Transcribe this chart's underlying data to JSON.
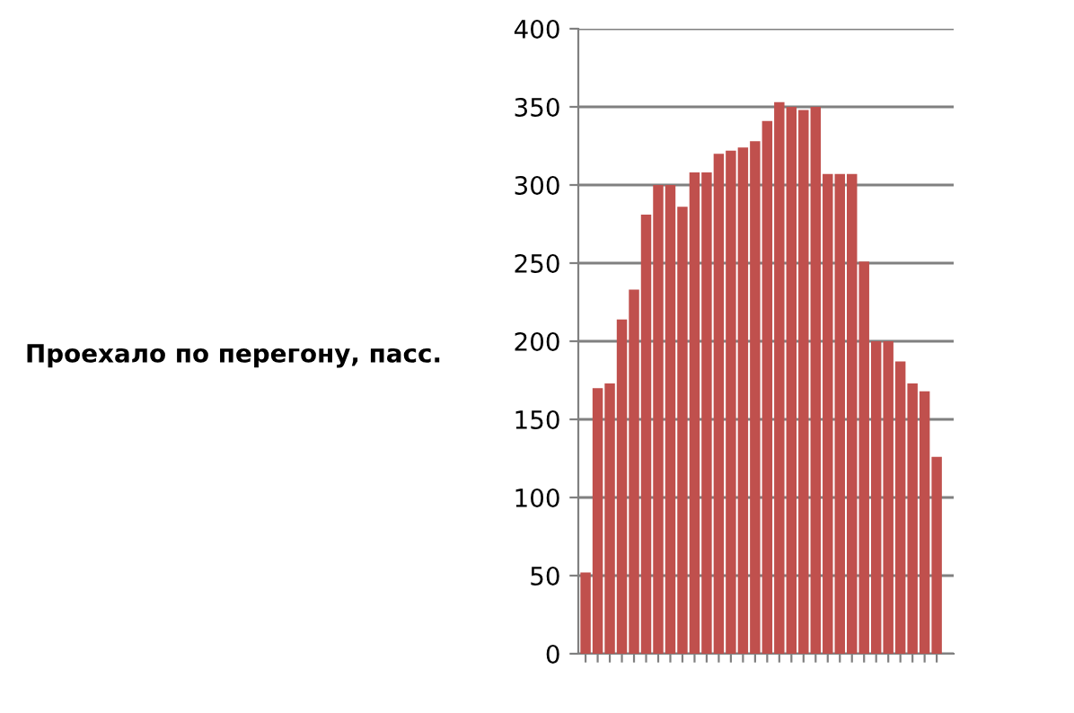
{
  "chart_data": {
    "type": "bar",
    "ylabel": "Проехало по перегону, пасс.",
    "categories": [
      null,
      null,
      null,
      null,
      null,
      null,
      null,
      null,
      null,
      null,
      null,
      null,
      null,
      null,
      null,
      null,
      null,
      null,
      null,
      null,
      null,
      null,
      null,
      null,
      null,
      null,
      null,
      null,
      null,
      null
    ],
    "values": [
      52,
      170,
      173,
      214,
      233,
      281,
      300,
      300,
      286,
      308,
      308,
      320,
      322,
      324,
      328,
      341,
      353,
      350,
      348,
      350,
      307,
      307,
      307,
      251,
      200,
      200,
      187,
      173,
      168,
      126
    ],
    "color": "#c0504d",
    "ylim": [
      0,
      400
    ],
    "yticks": [
      0,
      50,
      100,
      150,
      200,
      250,
      300,
      350,
      400
    ],
    "grid": "y",
    "legend": false
  }
}
